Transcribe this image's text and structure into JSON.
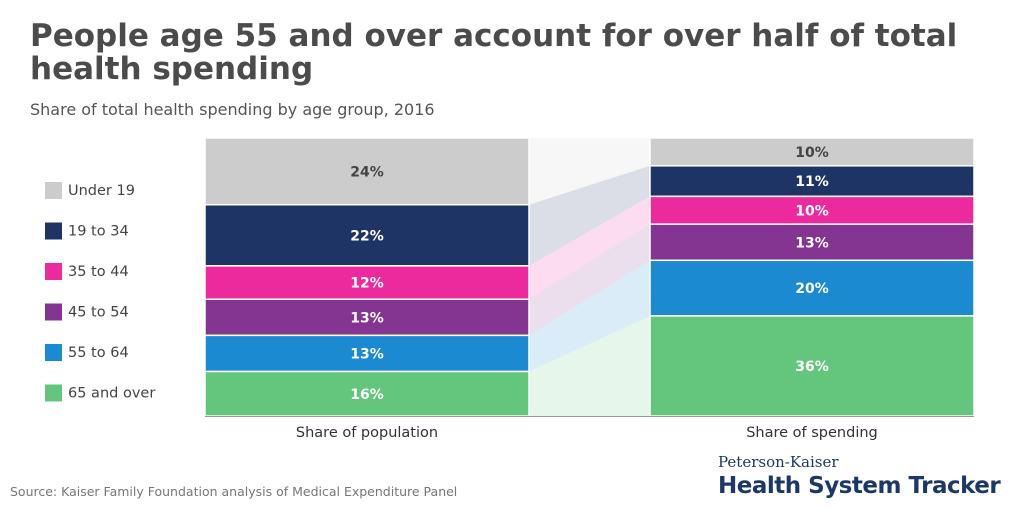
{
  "header": {
    "title": "People age 55 and over account for over half of total health spending",
    "subtitle": "Share of total health spending by age group, 2016"
  },
  "footer": {
    "source": "Source: Kaiser Family Foundation analysis of Medical Expenditure Panel",
    "brand_top": "Peterson-Kaiser",
    "brand_bottom": "Health System Tracker"
  },
  "chart_data": {
    "type": "bar",
    "subtype": "100% stacked bar with connecting bands",
    "title": "People age 55 and over account for over half of total health spending",
    "subtitle": "Share of total health spending by age group, 2016",
    "categories": [
      "Share of population",
      "Share of spending"
    ],
    "series": [
      {
        "name": "Under 19",
        "color": "#cccccc",
        "values": [
          24,
          10
        ]
      },
      {
        "name": "19 to 34",
        "color": "#1e3465",
        "values": [
          22,
          11
        ]
      },
      {
        "name": "35 to 44",
        "color": "#ec2a9d",
        "values": [
          12,
          10
        ]
      },
      {
        "name": "45 to 54",
        "color": "#843491",
        "values": [
          13,
          13
        ]
      },
      {
        "name": "55 to 64",
        "color": "#1b8ad0",
        "values": [
          13,
          20
        ]
      },
      {
        "name": "65 and over",
        "color": "#64c57c",
        "values": [
          16,
          36
        ]
      }
    ],
    "value_suffix": "%",
    "legend_position": "left",
    "ylim": [
      0,
      100
    ],
    "grid": false
  }
}
